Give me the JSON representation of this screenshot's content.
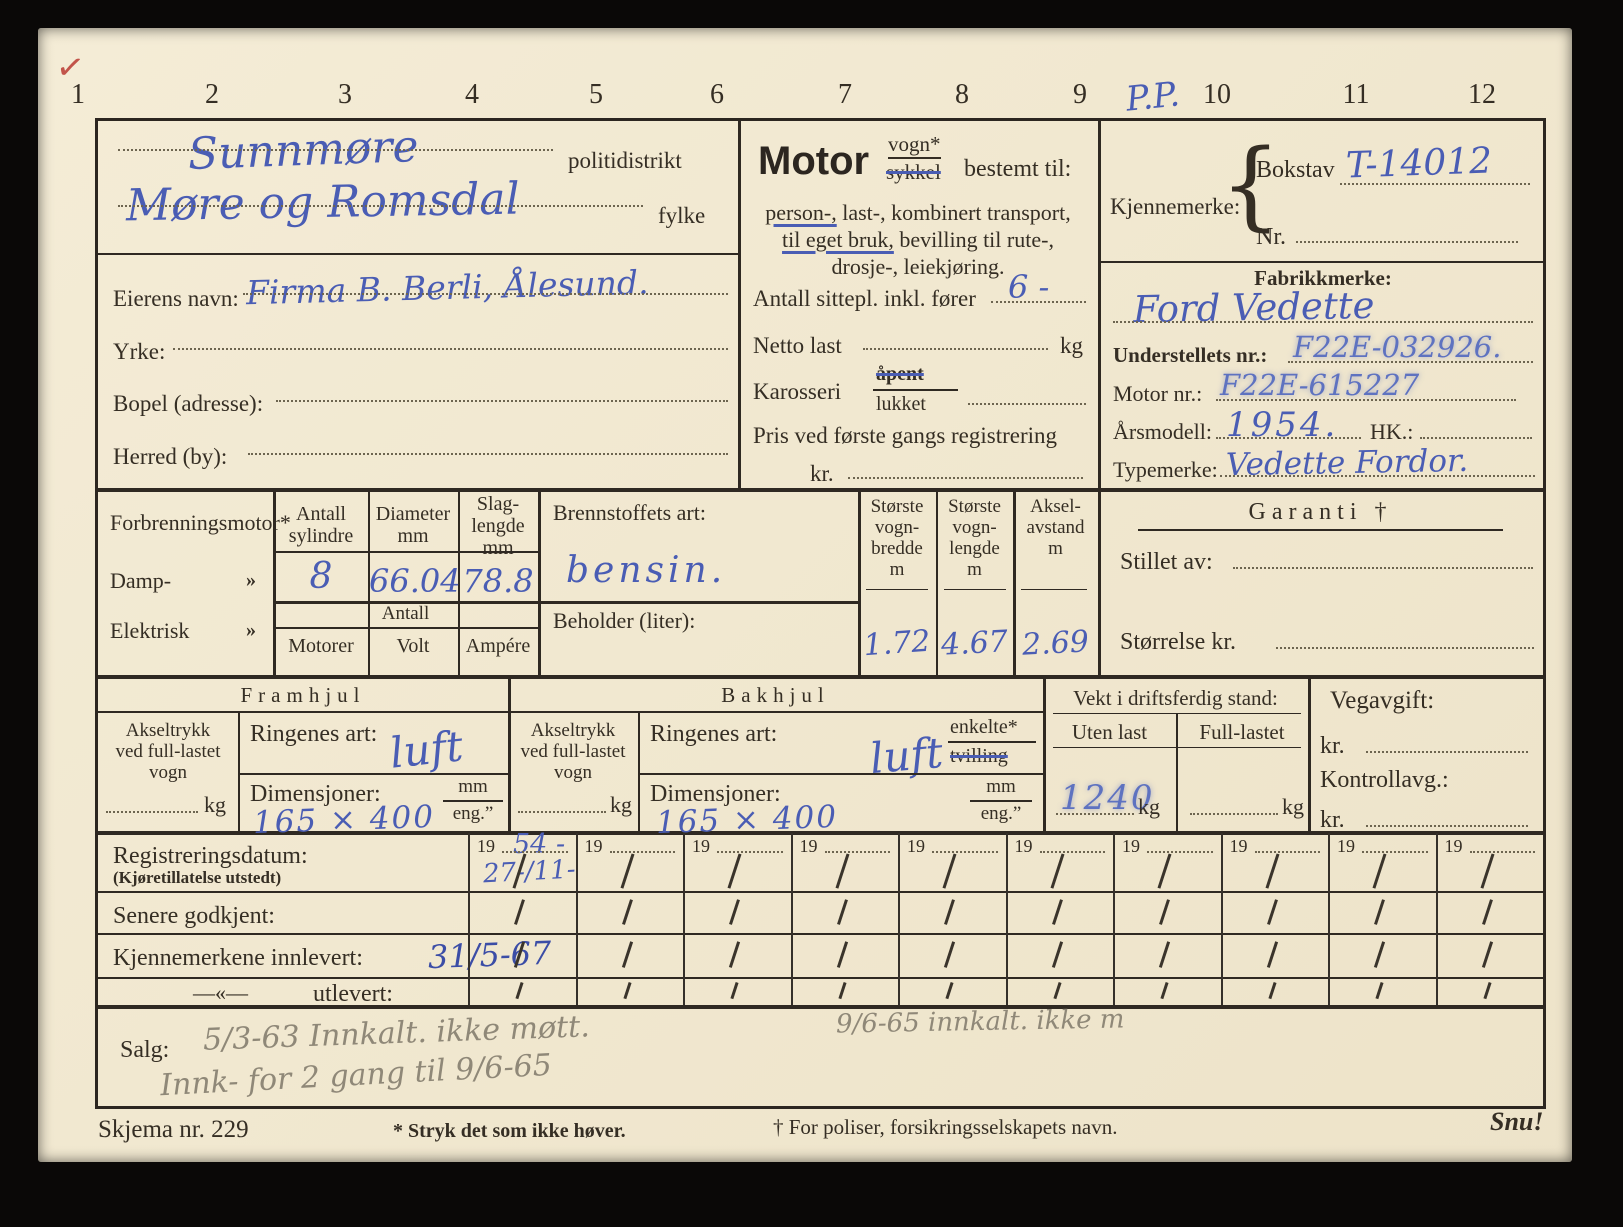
{
  "ruler": {
    "numbers": [
      "1",
      "2",
      "3",
      "4",
      "5",
      "6",
      "7",
      "8",
      "9",
      "10",
      "11",
      "12"
    ],
    "pp_note": "P.P.",
    "check_mark": "✓"
  },
  "owner_block": {
    "politidistrikt_value": "Sunnmøre",
    "politidistrikt_label": "politidistrikt",
    "fylke_value": "Møre og Romsdal",
    "fylke_label": "fylke",
    "eierens_navn_label": "Eierens navn:",
    "eierens_navn_value": "Firma B. Berli, Ålesund.",
    "yrke_label": "Yrke:",
    "bopel_label": "Bopel (adresse):",
    "herred_label": "Herred (by):"
  },
  "motor_block": {
    "motor_word": "Motor",
    "vogn": "vogn*",
    "sykkel": "sykkel",
    "bestemt_til": "bestemt til:",
    "purpose_l1a": "person-,",
    "purpose_l1b": " last-, kombinert transport,",
    "purpose_l2a": "til eget bruk,",
    "purpose_l2b": " bevilling til rute-,",
    "purpose_l3": "drosje-, leiekjøring.",
    "sittepl_label": "Antall sittepl. inkl. fører",
    "sittepl_value": "6 -",
    "netto_last_label": "Netto last",
    "netto_kg": "kg",
    "karosseri_label": "Karosseri",
    "apent": "åpent",
    "lukket": "lukket",
    "pris_label": "Pris ved første gangs registrering",
    "pris_kr": "kr."
  },
  "id_block": {
    "kjennemerke_label": "Kjennemerke:",
    "brace": "{",
    "bokstav_label": "Bokstav",
    "bokstav_value": "T-14012",
    "nr_label": "Nr.",
    "fabrikkmerke_label": "Fabrikkmerke:",
    "fabrikkmerke_value": "Ford Vedette",
    "understell_label": "Understellets nr.:",
    "understell_value": "F22E-032926.",
    "motor_nr_label": "Motor nr.:",
    "motor_nr_value": "F22E-615227",
    "arsmodell_label": "Årsmodell:",
    "arsmodell_value": "1954.",
    "hk_label": "HK.:",
    "typemerke_label": "Typemerke:",
    "typemerke_value": "Vedette Fordor."
  },
  "engine_block": {
    "forbrenningsmotor_label": "Forbrenningsmotor*",
    "damp_label": "Damp-",
    "elektrisk_label": "Elektrisk",
    "ditto": "»",
    "col_sylindre": "Antall\nsylindre",
    "col_diameter": "Diameter\nmm",
    "col_slaglengde": "Slag-\nlengde\nmm",
    "val_sylindre": "8",
    "val_diameter": "66.04",
    "val_slaglengde": "78.8",
    "antall_label": "Antall",
    "col_motorer": "Motorer",
    "col_volt": "Volt",
    "col_ampere": "Ampére",
    "brennstoff_label": "Brennstoffets art:",
    "brennstoff_value": "bensin.",
    "beholder_label": "Beholder (liter):"
  },
  "dims_block": {
    "bredde_label": "Største\nvogn-\nbredde\nm",
    "lengde_label": "Største\nvogn-\nlengde\nm",
    "aksel_label": "Aksel-\navstand\nm",
    "bredde_value": "1.72",
    "lengde_value": "4.67",
    "aksel_value": "2.69"
  },
  "garanti_block": {
    "title": "Garanti †",
    "stillet_av_label": "Stillet av:",
    "storrelse_label": "Størrelse kr."
  },
  "front_wheels": {
    "title": "Framhjul",
    "akseltrykk_label": "Akseltrykk\nved full-lastet\nvogn",
    "kg": "kg",
    "ringenes_art_label": "Ringenes art:",
    "ringenes_art_value": "luft",
    "dimensjoner_label": "Dimensjoner:",
    "dimensjoner_value": "165 × 400",
    "mm": "mm",
    "eng": "eng.”"
  },
  "rear_wheels": {
    "title": "Bakhjul",
    "akseltrykk_label": "Akseltrykk\nved full-lastet\nvogn",
    "kg": "kg",
    "ringenes_art_label": "Ringenes art:",
    "ringenes_art_value": "luft",
    "enkelte": "enkelte*",
    "tvilling": "tvilling",
    "dimensjoner_label": "Dimensjoner:",
    "dimensjoner_value": "165 × 400",
    "mm": "mm",
    "eng": "eng.”"
  },
  "weight_block": {
    "title": "Vekt i driftsferdig stand:",
    "uten_last_label": "Uten last",
    "full_lastet_label": "Full-lastet",
    "uten_last_value": "1240",
    "kg1": "kg",
    "kg2": "kg"
  },
  "tax_block": {
    "vegavgift_label": "Vegavgift:",
    "kr1": "kr.",
    "kontrollavg_label": "Kontrollavg.:",
    "kr2": "kr."
  },
  "reg_table": {
    "year_prefix": "19",
    "num_cols": 10,
    "reg_label": "Registreringsdatum:",
    "reg_sublabel": "(Kjøretillatelse utstedt)",
    "senere_label": "Senere godkjent:",
    "innlevert_label": "Kjennemerkene innlevert:",
    "ditto_mark": "—«—",
    "utlevert_label": "utlevert:",
    "col1_year": "54 -",
    "col1_date": "27-/11-",
    "innlevert_value": "31/5-67"
  },
  "salg_block": {
    "label": "Salg:",
    "line1": "5/3-63 Innkalt. ikke møtt.",
    "line1_right": "9/6-65 innkalt. ikke m",
    "line2": "Innk- for 2 gang til 9/6-65"
  },
  "footer": {
    "skjema": "Skjema nr. 229",
    "note_star": "* Stryk det som ikke høver.",
    "note_cross": "† For poliser, forsikringsselskapets navn.",
    "snu": "Snu!"
  }
}
